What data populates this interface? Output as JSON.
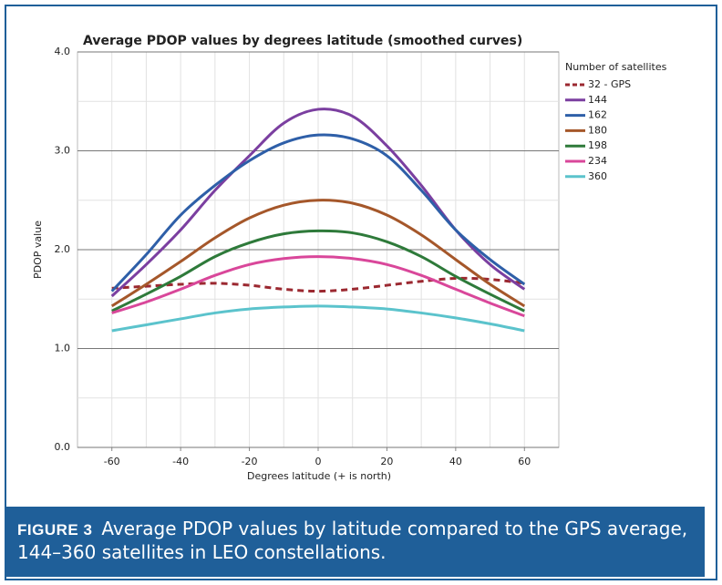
{
  "chart_data": {
    "type": "line",
    "title": "Average PDOP values by degrees latitude (smoothed curves)",
    "x_label": "Degrees latitude (+ is north)",
    "y_label": "PDOP value",
    "legend_title": "Number of satellites",
    "legend": "right",
    "grid": true,
    "smooth": true,
    "x": [
      -60,
      -50,
      -40,
      -30,
      -20,
      -10,
      0,
      10,
      20,
      30,
      40,
      50,
      60
    ],
    "xlim": [
      -70,
      70
    ],
    "xticks": [
      -60,
      -40,
      -20,
      0,
      20,
      40,
      60
    ],
    "ylim": [
      0,
      4
    ],
    "yticks": [
      {
        "value": 0,
        "label": "0.0"
      },
      {
        "value": 1,
        "label": "1.0"
      },
      {
        "value": 2,
        "label": "2.0"
      },
      {
        "value": 3,
        "label": "3.0"
      },
      {
        "value": 4,
        "label": "4.0"
      }
    ],
    "series": [
      {
        "name": "32 - GPS",
        "color": "#9b2830",
        "dashed": true,
        "values": [
          1.61,
          1.63,
          1.65,
          1.66,
          1.64,
          1.6,
          1.58,
          1.6,
          1.64,
          1.68,
          1.71,
          1.7,
          1.66
        ]
      },
      {
        "name": "144",
        "color": "#7b3fa0",
        "values": [
          1.53,
          1.85,
          2.2,
          2.6,
          2.95,
          3.28,
          3.42,
          3.35,
          3.05,
          2.65,
          2.2,
          1.85,
          1.6
        ]
      },
      {
        "name": "162",
        "color": "#2e5fa8",
        "values": [
          1.58,
          1.95,
          2.35,
          2.65,
          2.9,
          3.08,
          3.16,
          3.12,
          2.95,
          2.6,
          2.2,
          1.9,
          1.65
        ]
      },
      {
        "name": "180",
        "color": "#a5572a",
        "values": [
          1.43,
          1.65,
          1.88,
          2.12,
          2.32,
          2.45,
          2.5,
          2.47,
          2.35,
          2.15,
          1.9,
          1.65,
          1.43
        ]
      },
      {
        "name": "198",
        "color": "#2e7a3a",
        "values": [
          1.38,
          1.55,
          1.73,
          1.93,
          2.07,
          2.16,
          2.19,
          2.17,
          2.08,
          1.93,
          1.73,
          1.55,
          1.38
        ]
      },
      {
        "name": "234",
        "color": "#d9479a",
        "values": [
          1.36,
          1.47,
          1.6,
          1.74,
          1.85,
          1.91,
          1.93,
          1.91,
          1.85,
          1.74,
          1.6,
          1.46,
          1.33
        ]
      },
      {
        "name": "360",
        "color": "#5bc3cc",
        "values": [
          1.18,
          1.24,
          1.3,
          1.36,
          1.4,
          1.42,
          1.43,
          1.42,
          1.4,
          1.36,
          1.31,
          1.25,
          1.18
        ]
      }
    ]
  },
  "caption": {
    "label": "FIGURE 3",
    "text": "Average PDOP values by latitude compared to the GPS average, 144–360 satellites in LEO constellations."
  }
}
